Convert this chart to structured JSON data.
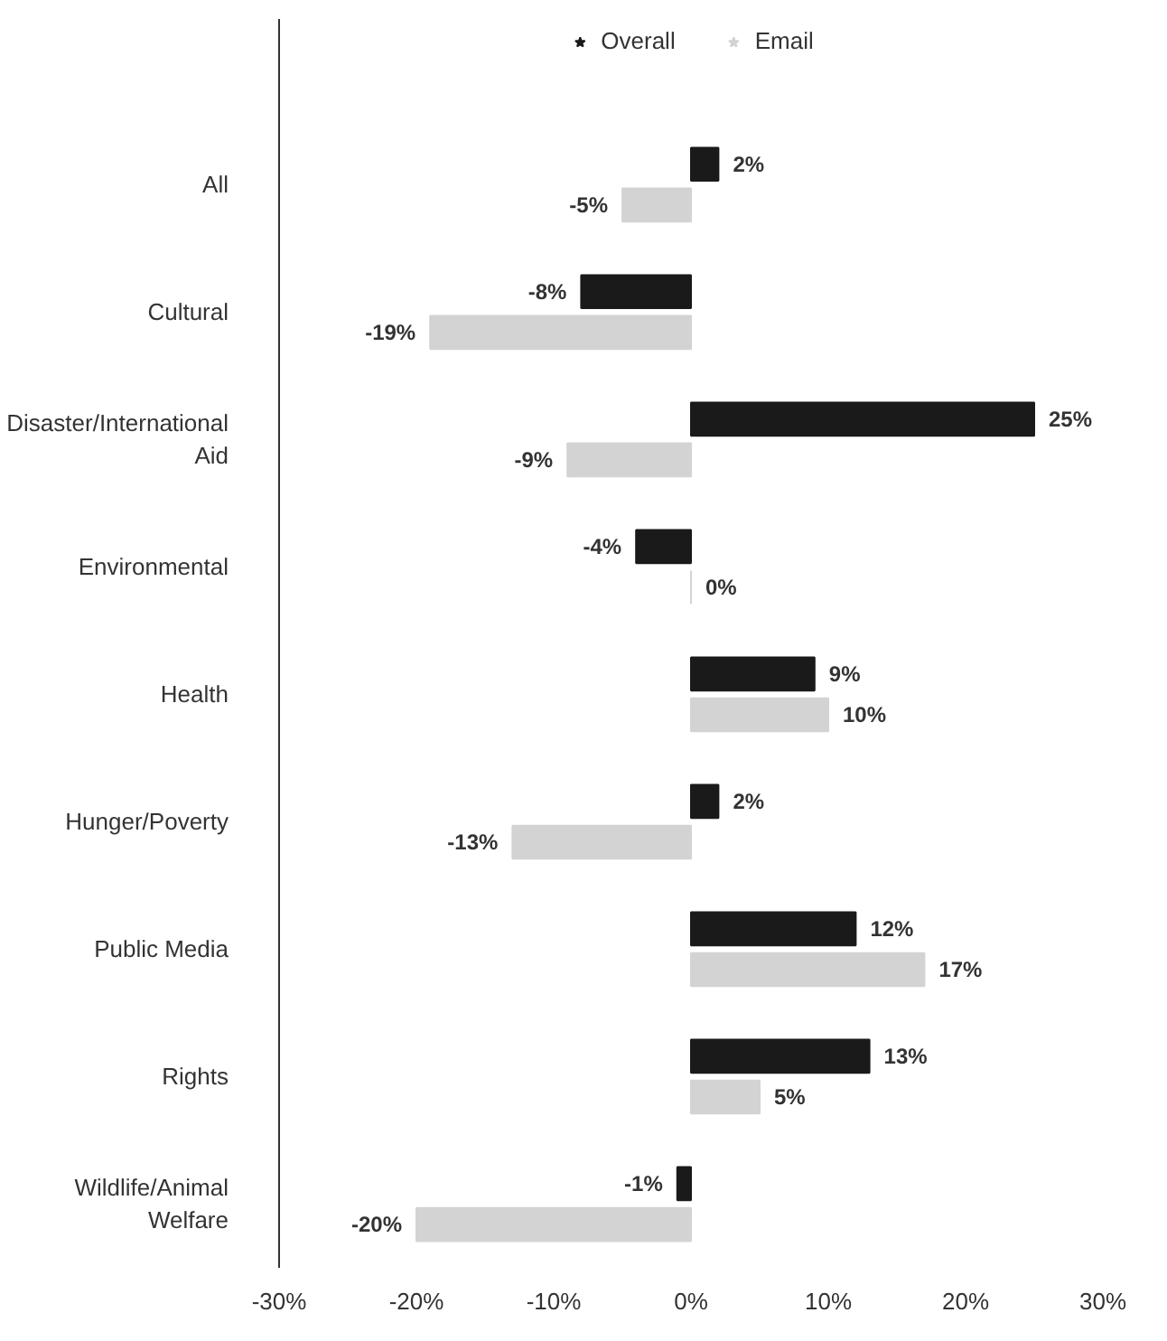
{
  "chart_data": {
    "type": "bar",
    "orientation": "horizontal",
    "categories": [
      "All",
      "Cultural",
      "Disaster/International Aid",
      "Environmental",
      "Health",
      "Hunger/Poverty",
      "Public Media",
      "Rights",
      "Wildlife/Animal Welfare"
    ],
    "series": [
      {
        "name": "Overall",
        "color": "#1a1a1a",
        "values": [
          2,
          -8,
          25,
          -4,
          9,
          2,
          12,
          13,
          -1
        ],
        "value_labels": [
          "2%",
          "-8%",
          "25%",
          "-4%",
          "9%",
          "2%",
          "12%",
          "13%",
          "-1%"
        ]
      },
      {
        "name": "Email",
        "color": "#d3d3d3",
        "values": [
          -5,
          -19,
          -9,
          0,
          10,
          -13,
          17,
          5,
          -20
        ],
        "value_labels": [
          "-5%",
          "-19%",
          "-9%",
          "0%",
          "10%",
          "-13%",
          "17%",
          "5%",
          "-20%"
        ]
      }
    ],
    "xlim": [
      -30,
      30
    ],
    "xticks": [
      {
        "value": -30,
        "label": "-30%"
      },
      {
        "value": -20,
        "label": "-20%"
      },
      {
        "value": -10,
        "label": "-10%"
      },
      {
        "value": 0,
        "label": "0%"
      },
      {
        "value": 10,
        "label": "10%"
      },
      {
        "value": 20,
        "label": "20%"
      },
      {
        "value": 30,
        "label": "30%"
      }
    ],
    "grid": false,
    "legend": "top"
  }
}
